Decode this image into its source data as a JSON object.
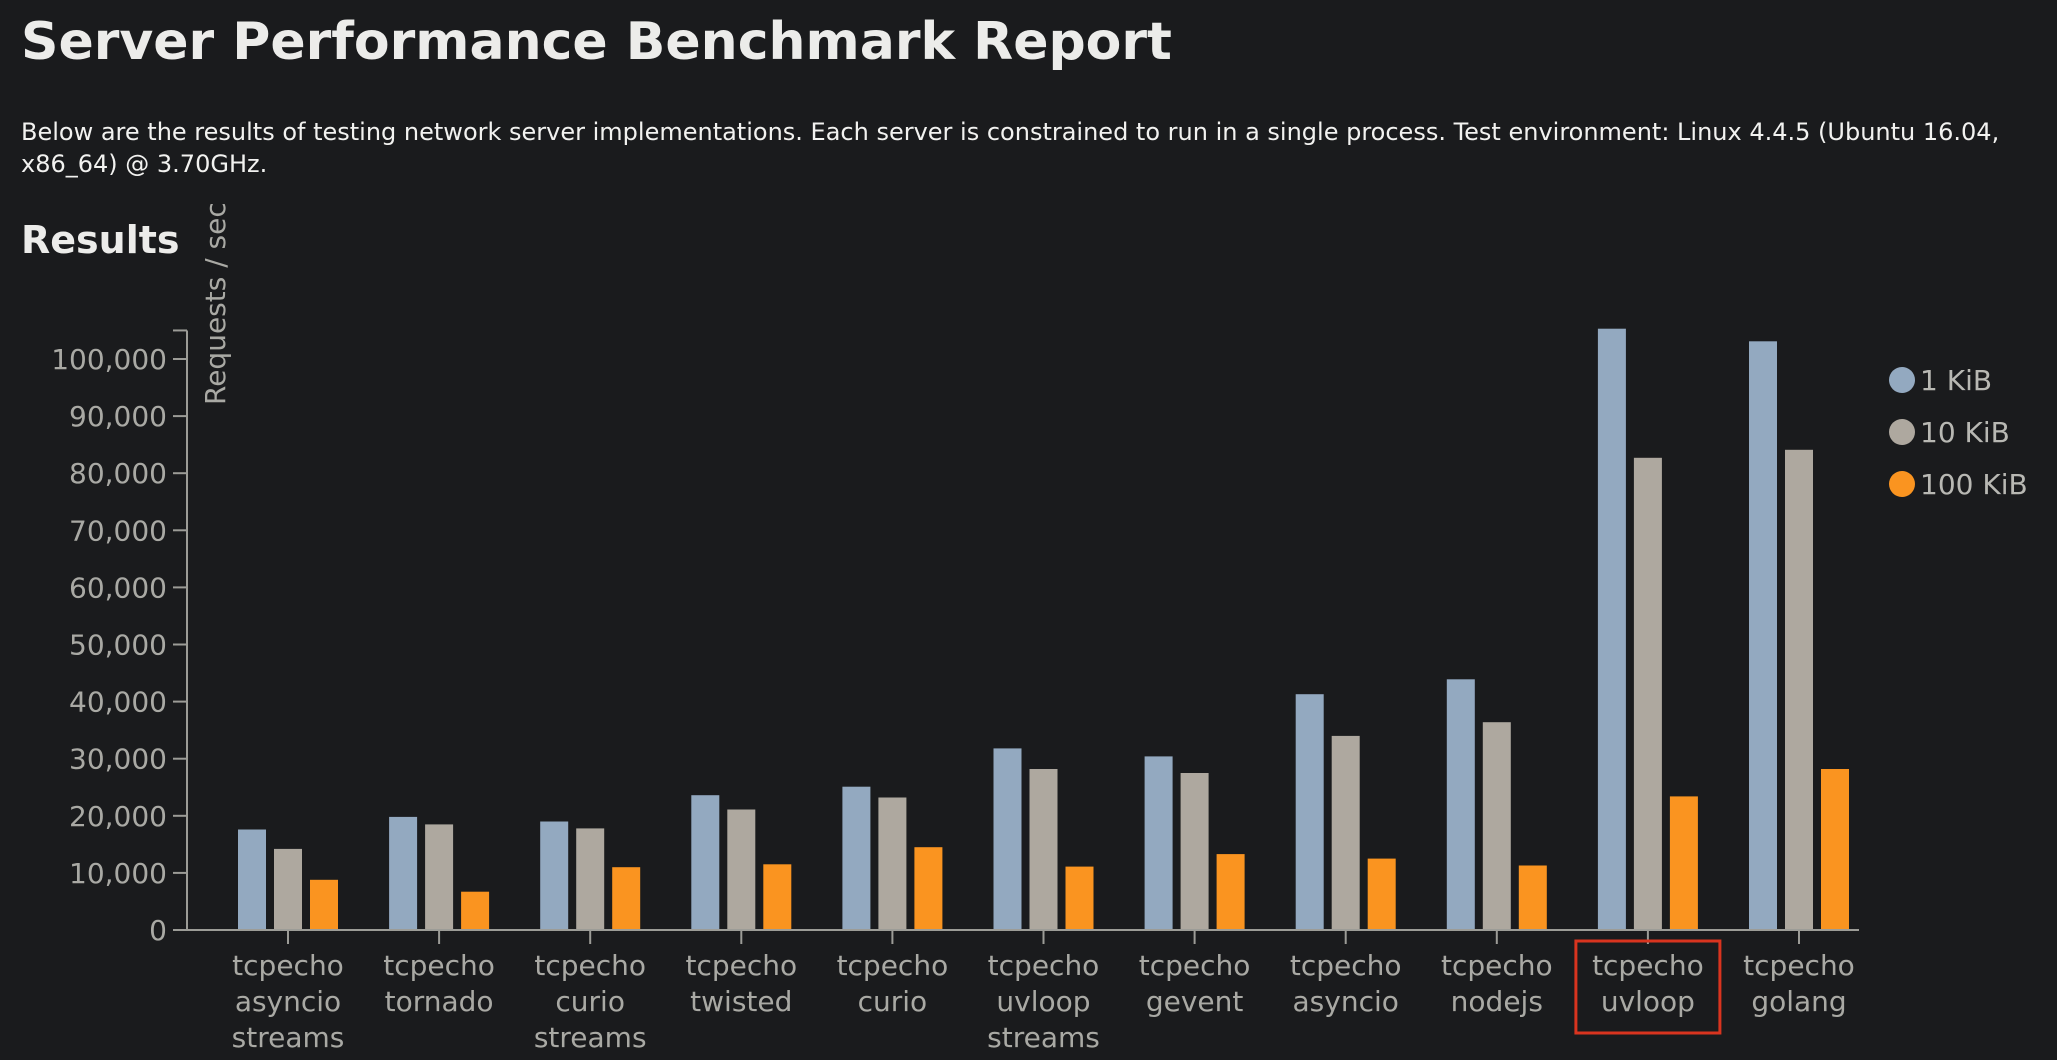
{
  "header": {
    "title": "Server Performance Benchmark Report",
    "intro": "Below are the results of testing network server implementations. Each server is constrained to run in a single process. Test environment: Linux 4.4.5 (Ubuntu 16.04, x86_64) @ 3.70GHz.",
    "section_title": "Results"
  },
  "chart_data": {
    "type": "bar",
    "title": "",
    "xlabel": "",
    "ylabel": "Requests / sec",
    "ylim": [
      0,
      105000
    ],
    "yticks": [
      0,
      10000,
      20000,
      30000,
      40000,
      50000,
      60000,
      70000,
      80000,
      90000,
      100000
    ],
    "ytick_labels": [
      "0",
      "10,000",
      "20,000",
      "30,000",
      "40,000",
      "50,000",
      "60,000",
      "70,000",
      "80,000",
      "90,000",
      "100,000"
    ],
    "grid": false,
    "legend_position": "top-right",
    "categories": [
      [
        "tcpecho",
        "asyncio",
        "streams"
      ],
      [
        "tcpecho",
        "tornado"
      ],
      [
        "tcpecho",
        "curio",
        "streams"
      ],
      [
        "tcpecho",
        "twisted"
      ],
      [
        "tcpecho",
        "curio"
      ],
      [
        "tcpecho",
        "uvloop",
        "streams"
      ],
      [
        "tcpecho",
        "gevent"
      ],
      [
        "tcpecho",
        "asyncio"
      ],
      [
        "tcpecho",
        "nodejs"
      ],
      [
        "tcpecho",
        "uvloop"
      ],
      [
        "tcpecho",
        "golang"
      ]
    ],
    "highlighted_category": 9,
    "highlight_color": "#d9341f",
    "series": [
      {
        "name": "1 KiB",
        "color": "#93a9c0",
        "values": [
          17600,
          19800,
          19000,
          23600,
          25100,
          31800,
          30400,
          41300,
          43900,
          105300,
          103100
        ]
      },
      {
        "name": "10 KiB",
        "color": "#aea89f",
        "values": [
          14200,
          18500,
          17800,
          21100,
          23200,
          28200,
          27500,
          34000,
          36400,
          82700,
          84100
        ]
      },
      {
        "name": "100 KiB",
        "color": "#fa9420",
        "values": [
          8800,
          6700,
          11000,
          11500,
          14500,
          11100,
          13300,
          12500,
          11300,
          23400,
          28200
        ]
      }
    ]
  }
}
